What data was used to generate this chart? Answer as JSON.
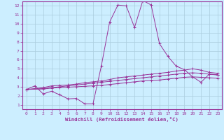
{
  "xlabel": "Windchill (Refroidissement éolien,°C)",
  "background_color": "#cceeff",
  "grid_color": "#aaccdd",
  "line_color": "#993399",
  "xlim": [
    -0.5,
    23.5
  ],
  "ylim": [
    0.5,
    12.5
  ],
  "xticks": [
    0,
    1,
    2,
    3,
    4,
    5,
    6,
    7,
    8,
    9,
    10,
    11,
    12,
    13,
    14,
    15,
    16,
    17,
    18,
    19,
    20,
    21,
    22,
    23
  ],
  "yticks": [
    1,
    2,
    3,
    4,
    5,
    6,
    7,
    8,
    9,
    10,
    11,
    12
  ],
  "series1_x": [
    0,
    1,
    2,
    3,
    4,
    5,
    6,
    7,
    8,
    9,
    10,
    11,
    12,
    13,
    14,
    15,
    16,
    17,
    18,
    19,
    20,
    21,
    22,
    23
  ],
  "series1_y": [
    2.7,
    3.1,
    2.2,
    2.5,
    2.1,
    1.65,
    1.7,
    1.1,
    1.1,
    5.3,
    10.2,
    12.1,
    12.0,
    9.6,
    12.6,
    12.1,
    7.8,
    6.4,
    5.3,
    4.9,
    4.1,
    3.5,
    4.4,
    4.3
  ],
  "series2_x": [
    0,
    2,
    3,
    4,
    5,
    6,
    7,
    8,
    9,
    10,
    11,
    12,
    13,
    14,
    15,
    16,
    17,
    18,
    19,
    20,
    21,
    22,
    23
  ],
  "series2_y": [
    2.7,
    2.9,
    3.1,
    3.15,
    3.2,
    3.3,
    3.45,
    3.55,
    3.65,
    3.8,
    4.0,
    4.1,
    4.2,
    4.3,
    4.4,
    4.5,
    4.6,
    4.75,
    4.85,
    5.0,
    4.85,
    4.6,
    4.5
  ],
  "series3_x": [
    0,
    2,
    3,
    4,
    5,
    6,
    7,
    8,
    9,
    10,
    11,
    12,
    13,
    14,
    15,
    16,
    17,
    18,
    19,
    20,
    21,
    22,
    23
  ],
  "series3_y": [
    2.7,
    2.75,
    2.85,
    2.9,
    2.95,
    3.0,
    3.05,
    3.1,
    3.15,
    3.25,
    3.35,
    3.45,
    3.55,
    3.65,
    3.7,
    3.75,
    3.85,
    3.95,
    4.05,
    4.1,
    4.05,
    4.0,
    3.95
  ],
  "series4_x": [
    0,
    2,
    3,
    4,
    5,
    6,
    7,
    8,
    9,
    10,
    11,
    12,
    13,
    14,
    15,
    16,
    17,
    18,
    19,
    20,
    21,
    22,
    23
  ],
  "series4_y": [
    2.7,
    2.8,
    2.9,
    3.0,
    3.1,
    3.2,
    3.3,
    3.4,
    3.5,
    3.6,
    3.7,
    3.8,
    3.9,
    4.0,
    4.1,
    4.2,
    4.3,
    4.4,
    4.5,
    4.55,
    4.5,
    4.4,
    4.35
  ]
}
